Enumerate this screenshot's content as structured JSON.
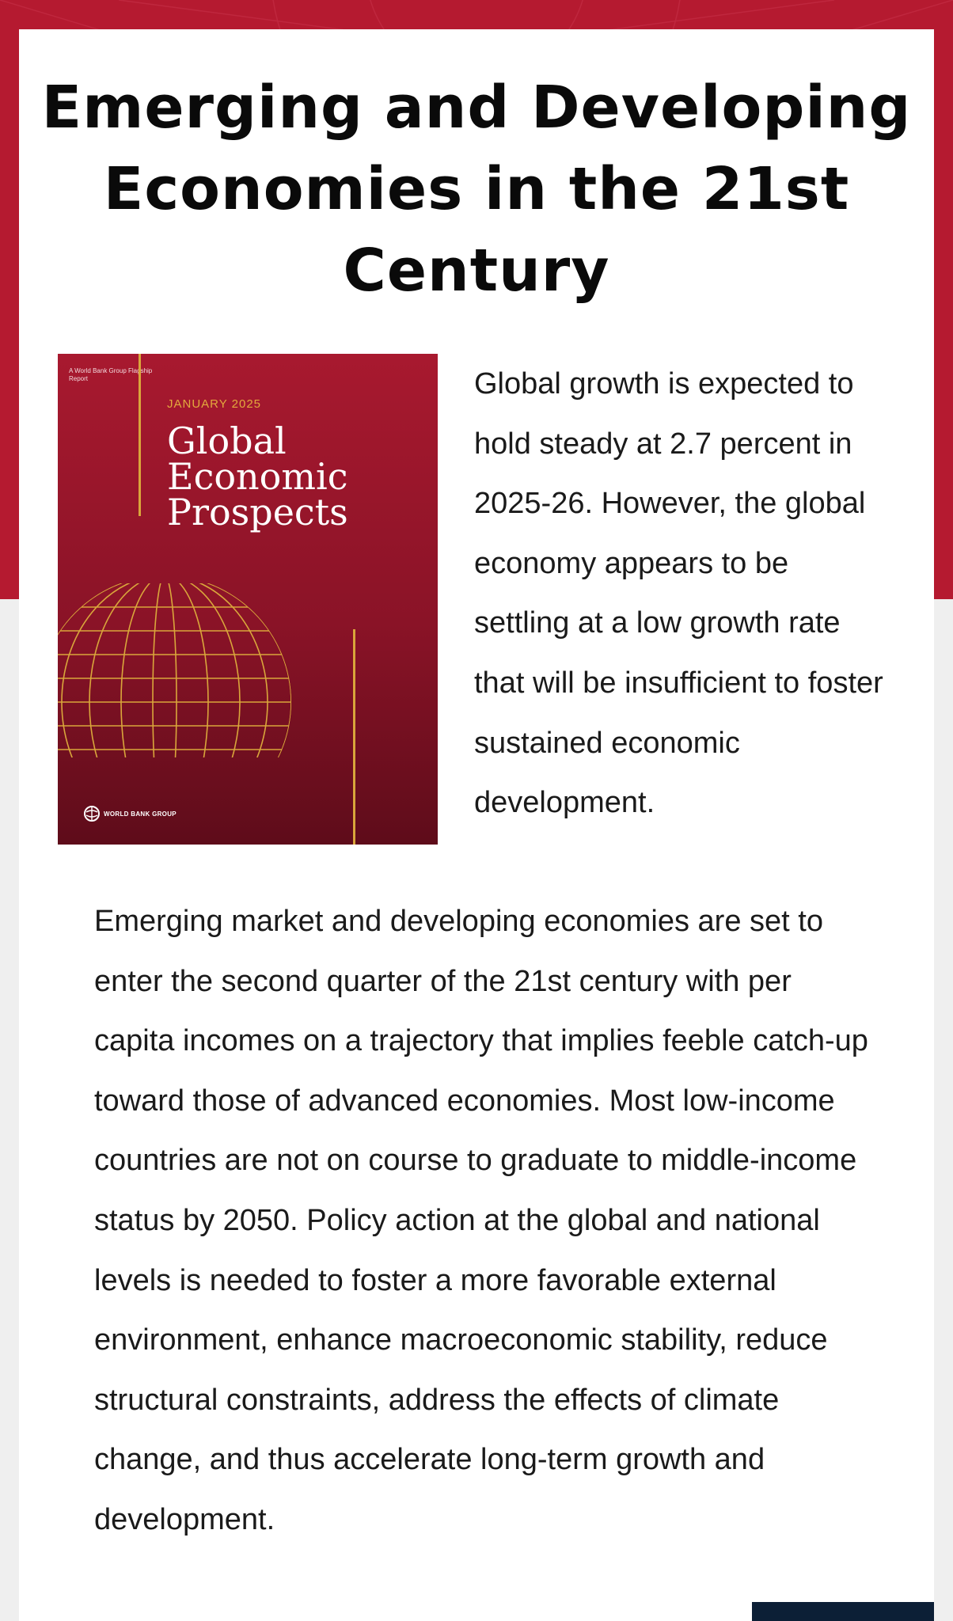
{
  "page": {
    "title": "Emerging and Developing Economies in the 21st Century",
    "intro": "Global growth is expected to hold steady at 2.7 percent in 2025-26. However, the global economy appears to be settling at a low growth rate that will be insufficient to foster sustained economic development.",
    "body": "Emerging market and developing economies are set to enter the second quarter of the 21st century with per capita incomes on a trajectory that implies feeble catch-up toward those of advanced economies. Most low-income countries are not on course to graduate to middle-income status by 2050. Policy action at the global and national levels is needed to foster a more favorable external environment, enhance macroeconomic stability, reduce structural constraints, address the effects of climate change, and thus accelerate long-term growth and development."
  },
  "cover": {
    "flagship_label": "A World Bank Group Flagship Report",
    "issue_date": "JANUARY 2025",
    "report_title": "Global\nEconomic\nProspects",
    "publisher": "WORLD BANK GROUP",
    "icons": [
      "globe-illustration",
      "world-bank-logo-icon"
    ]
  },
  "colors": {
    "header_band": "#b51a30",
    "cover_red": "#8a1327",
    "cover_gold": "#d9a63b",
    "footer_navy": "#0c1f36",
    "page_background": "#efefef"
  }
}
